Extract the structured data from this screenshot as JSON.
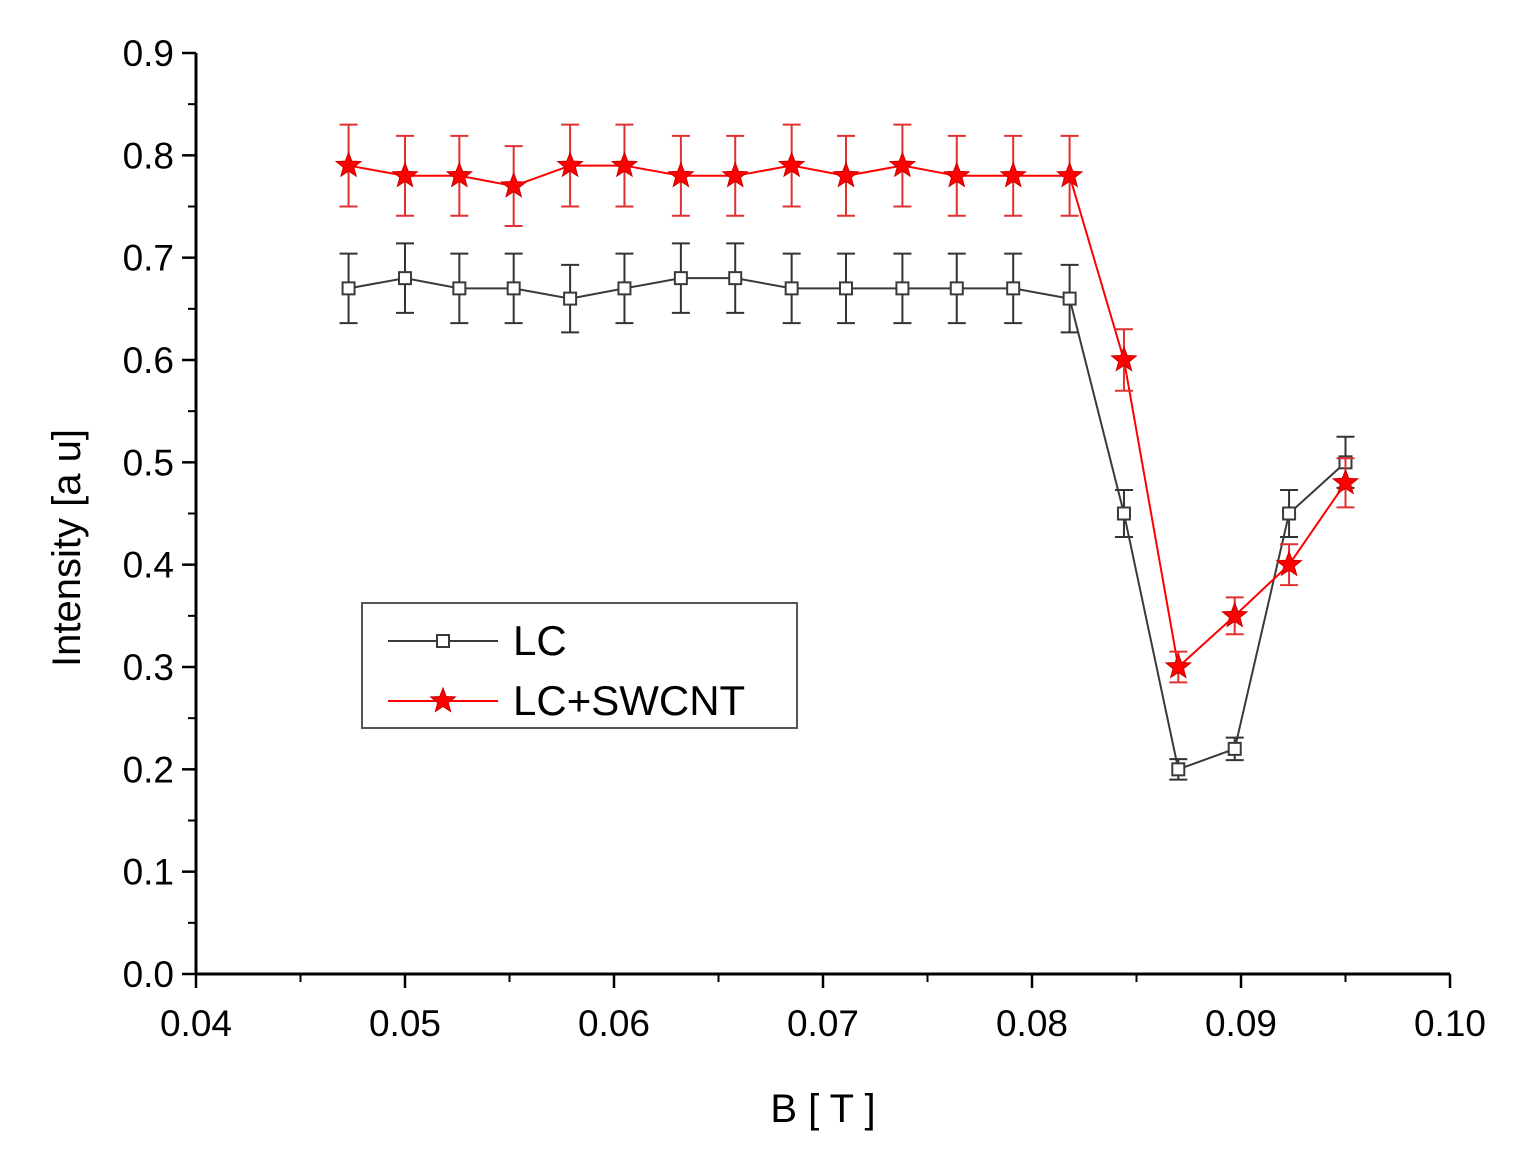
{
  "chart_data": {
    "type": "line",
    "title": "",
    "xlabel": "B [ T ]",
    "ylabel": "Intensity [a u]",
    "xlim": [
      0.04,
      0.1
    ],
    "ylim": [
      0.0,
      0.9
    ],
    "x_ticks": [
      "0.04",
      "0.05",
      "0.06",
      "0.07",
      "0.08",
      "0.09",
      "0.10"
    ],
    "x_tick_values": [
      0.04,
      0.05,
      0.06,
      0.07,
      0.08,
      0.09,
      0.1
    ],
    "y_ticks": [
      "0.0",
      "0.1",
      "0.2",
      "0.3",
      "0.4",
      "0.5",
      "0.6",
      "0.7",
      "0.8",
      "0.9"
    ],
    "y_tick_values": [
      0.0,
      0.1,
      0.2,
      0.3,
      0.4,
      0.5,
      0.6,
      0.7,
      0.8,
      0.9
    ],
    "grid": false,
    "legend_position": "center-left",
    "x": [
      0.0473,
      0.05,
      0.0526,
      0.0552,
      0.0579,
      0.0605,
      0.0632,
      0.0658,
      0.0685,
      0.0711,
      0.0738,
      0.0764,
      0.0791,
      0.0818,
      0.0844,
      0.087,
      0.0897,
      0.0923,
      0.095
    ],
    "series": [
      {
        "name": "LC",
        "color": "#3a3a3a",
        "marker": "open-square",
        "values": [
          0.67,
          0.68,
          0.67,
          0.67,
          0.66,
          0.67,
          0.68,
          0.68,
          0.67,
          0.67,
          0.67,
          0.67,
          0.67,
          0.66,
          0.45,
          0.2,
          0.22,
          0.45,
          0.5
        ],
        "errors": [
          0.034,
          0.034,
          0.034,
          0.034,
          0.033,
          0.034,
          0.034,
          0.034,
          0.034,
          0.034,
          0.034,
          0.034,
          0.034,
          0.033,
          0.023,
          0.01,
          0.011,
          0.023,
          0.025
        ]
      },
      {
        "name": "LC+SWCNT",
        "color": "#ff0000",
        "marker": "filled-star",
        "values": [
          0.79,
          0.78,
          0.78,
          0.77,
          0.79,
          0.79,
          0.78,
          0.78,
          0.79,
          0.78,
          0.79,
          0.78,
          0.78,
          0.78,
          0.6,
          0.3,
          0.35,
          0.4,
          0.48
        ],
        "errors": [
          0.04,
          0.039,
          0.039,
          0.039,
          0.04,
          0.04,
          0.039,
          0.039,
          0.04,
          0.039,
          0.04,
          0.039,
          0.039,
          0.039,
          0.03,
          0.015,
          0.018,
          0.02,
          0.024
        ]
      }
    ]
  }
}
